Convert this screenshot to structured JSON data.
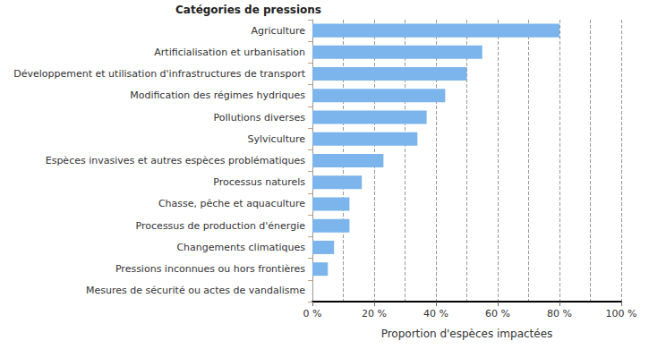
{
  "chart_data": {
    "type": "bar",
    "orientation": "horizontal",
    "title": "Catégories de pressions",
    "x_label": "Proportion d'espèces impactées",
    "categories": [
      "Agriculture",
      "Artificialisation et urbanisation",
      "Développement et utilisation d'infrastructures de transport",
      "Modification des régimes hydriques",
      "Pollutions diverses",
      "Sylviculture",
      "Espèces invasives et autres espèces problématiques",
      "Processus naturels",
      "Chasse, pêche et aquaculture",
      "Processus de production d'énergie",
      "Changements climatiques",
      "Pressions inconnues ou hors frontières",
      "Mesures de sécurité ou actes de vandalisme"
    ],
    "values": [
      80,
      55,
      50,
      43,
      37,
      34,
      23,
      16,
      12,
      12,
      7,
      5,
      0
    ],
    "color": "#7cb5ec",
    "xlim": [
      0,
      100
    ],
    "xticks": [
      {
        "value": 0,
        "label": "0 %"
      },
      {
        "value": 20,
        "label": "20 %"
      },
      {
        "value": 40,
        "label": "40 %"
      },
      {
        "value": 60,
        "label": "60 %"
      },
      {
        "value": 80,
        "label": "80 %"
      },
      {
        "value": 100,
        "label": "100 %"
      }
    ],
    "grid": true
  }
}
